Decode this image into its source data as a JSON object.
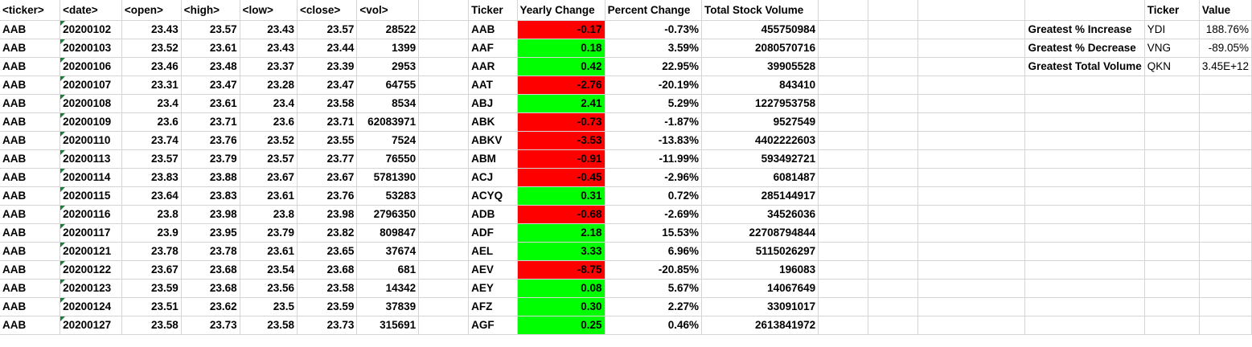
{
  "headers": [
    "<ticker>",
    "<date>",
    "<open>",
    "<high>",
    "<low>",
    "<close>",
    "<vol>"
  ],
  "rows": [
    [
      "AAB",
      "20200102",
      "23.43",
      "23.57",
      "23.43",
      "23.57",
      "28522"
    ],
    [
      "AAB",
      "20200103",
      "23.52",
      "23.61",
      "23.43",
      "23.44",
      "1399"
    ],
    [
      "AAB",
      "20200106",
      "23.46",
      "23.48",
      "23.37",
      "23.39",
      "2953"
    ],
    [
      "AAB",
      "20200107",
      "23.31",
      "23.47",
      "23.28",
      "23.47",
      "64755"
    ],
    [
      "AAB",
      "20200108",
      "23.4",
      "23.61",
      "23.4",
      "23.58",
      "8534"
    ],
    [
      "AAB",
      "20200109",
      "23.6",
      "23.71",
      "23.6",
      "23.71",
      "62083971"
    ],
    [
      "AAB",
      "20200110",
      "23.74",
      "23.76",
      "23.52",
      "23.55",
      "7524"
    ],
    [
      "AAB",
      "20200113",
      "23.57",
      "23.79",
      "23.57",
      "23.77",
      "76550"
    ],
    [
      "AAB",
      "20200114",
      "23.83",
      "23.88",
      "23.67",
      "23.67",
      "5781390"
    ],
    [
      "AAB",
      "20200115",
      "23.64",
      "23.83",
      "23.61",
      "23.76",
      "53283"
    ],
    [
      "AAB",
      "20200116",
      "23.8",
      "23.98",
      "23.8",
      "23.98",
      "2796350"
    ],
    [
      "AAB",
      "20200117",
      "23.9",
      "23.95",
      "23.79",
      "23.82",
      "809847"
    ],
    [
      "AAB",
      "20200121",
      "23.78",
      "23.78",
      "23.61",
      "23.65",
      "37674"
    ],
    [
      "AAB",
      "20200122",
      "23.67",
      "23.68",
      "23.54",
      "23.68",
      "681"
    ],
    [
      "AAB",
      "20200123",
      "23.59",
      "23.68",
      "23.56",
      "23.58",
      "14342"
    ],
    [
      "AAB",
      "20200124",
      "23.51",
      "23.62",
      "23.5",
      "23.59",
      "37839"
    ],
    [
      "AAB",
      "20200127",
      "23.58",
      "23.73",
      "23.58",
      "23.73",
      "315691"
    ]
  ],
  "summary_headers": [
    "Ticker",
    "Yearly Change",
    "Percent Change",
    "Total Stock Volume"
  ],
  "summary": [
    [
      "AAB",
      "-0.17",
      "-0.73%",
      "455750984"
    ],
    [
      "AAF",
      "0.18",
      "3.59%",
      "2080570716"
    ],
    [
      "AAR",
      "0.42",
      "22.95%",
      "39905528"
    ],
    [
      "AAT",
      "-2.76",
      "-20.19%",
      "843410"
    ],
    [
      "ABJ",
      "2.41",
      "5.29%",
      "1227953758"
    ],
    [
      "ABK",
      "-0.73",
      "-1.87%",
      "9527549"
    ],
    [
      "ABKV",
      "-3.53",
      "-13.83%",
      "4402222603"
    ],
    [
      "ABM",
      "-0.91",
      "-11.99%",
      "593492721"
    ],
    [
      "ACJ",
      "-0.45",
      "-2.96%",
      "6081487"
    ],
    [
      "ACYQ",
      "0.31",
      "0.72%",
      "285144917"
    ],
    [
      "ADB",
      "-0.68",
      "-2.69%",
      "34526036"
    ],
    [
      "ADF",
      "2.18",
      "15.53%",
      "22708794844"
    ],
    [
      "AEL",
      "3.33",
      "6.96%",
      "5115026297"
    ],
    [
      "AEV",
      "-8.75",
      "-20.85%",
      "196083"
    ],
    [
      "AEY",
      "0.08",
      "5.67%",
      "14067649"
    ],
    [
      "AFZ",
      "0.30",
      "2.27%",
      "33091017"
    ],
    [
      "AGF",
      "0.25",
      "0.46%",
      "2613841972"
    ]
  ],
  "greatest_headers": [
    "Ticker",
    "Value"
  ],
  "greatest": [
    [
      "Greatest % Increase",
      "YDI",
      "188.76%"
    ],
    [
      "Greatest % Decrease",
      "VNG",
      "-89.05%"
    ],
    [
      "Greatest Total Volume",
      "QKN",
      "3.45E+12"
    ]
  ],
  "colors": {
    "negative": "#ff0000",
    "positive": "#00ff00",
    "gridline": "#d4d4d4"
  }
}
